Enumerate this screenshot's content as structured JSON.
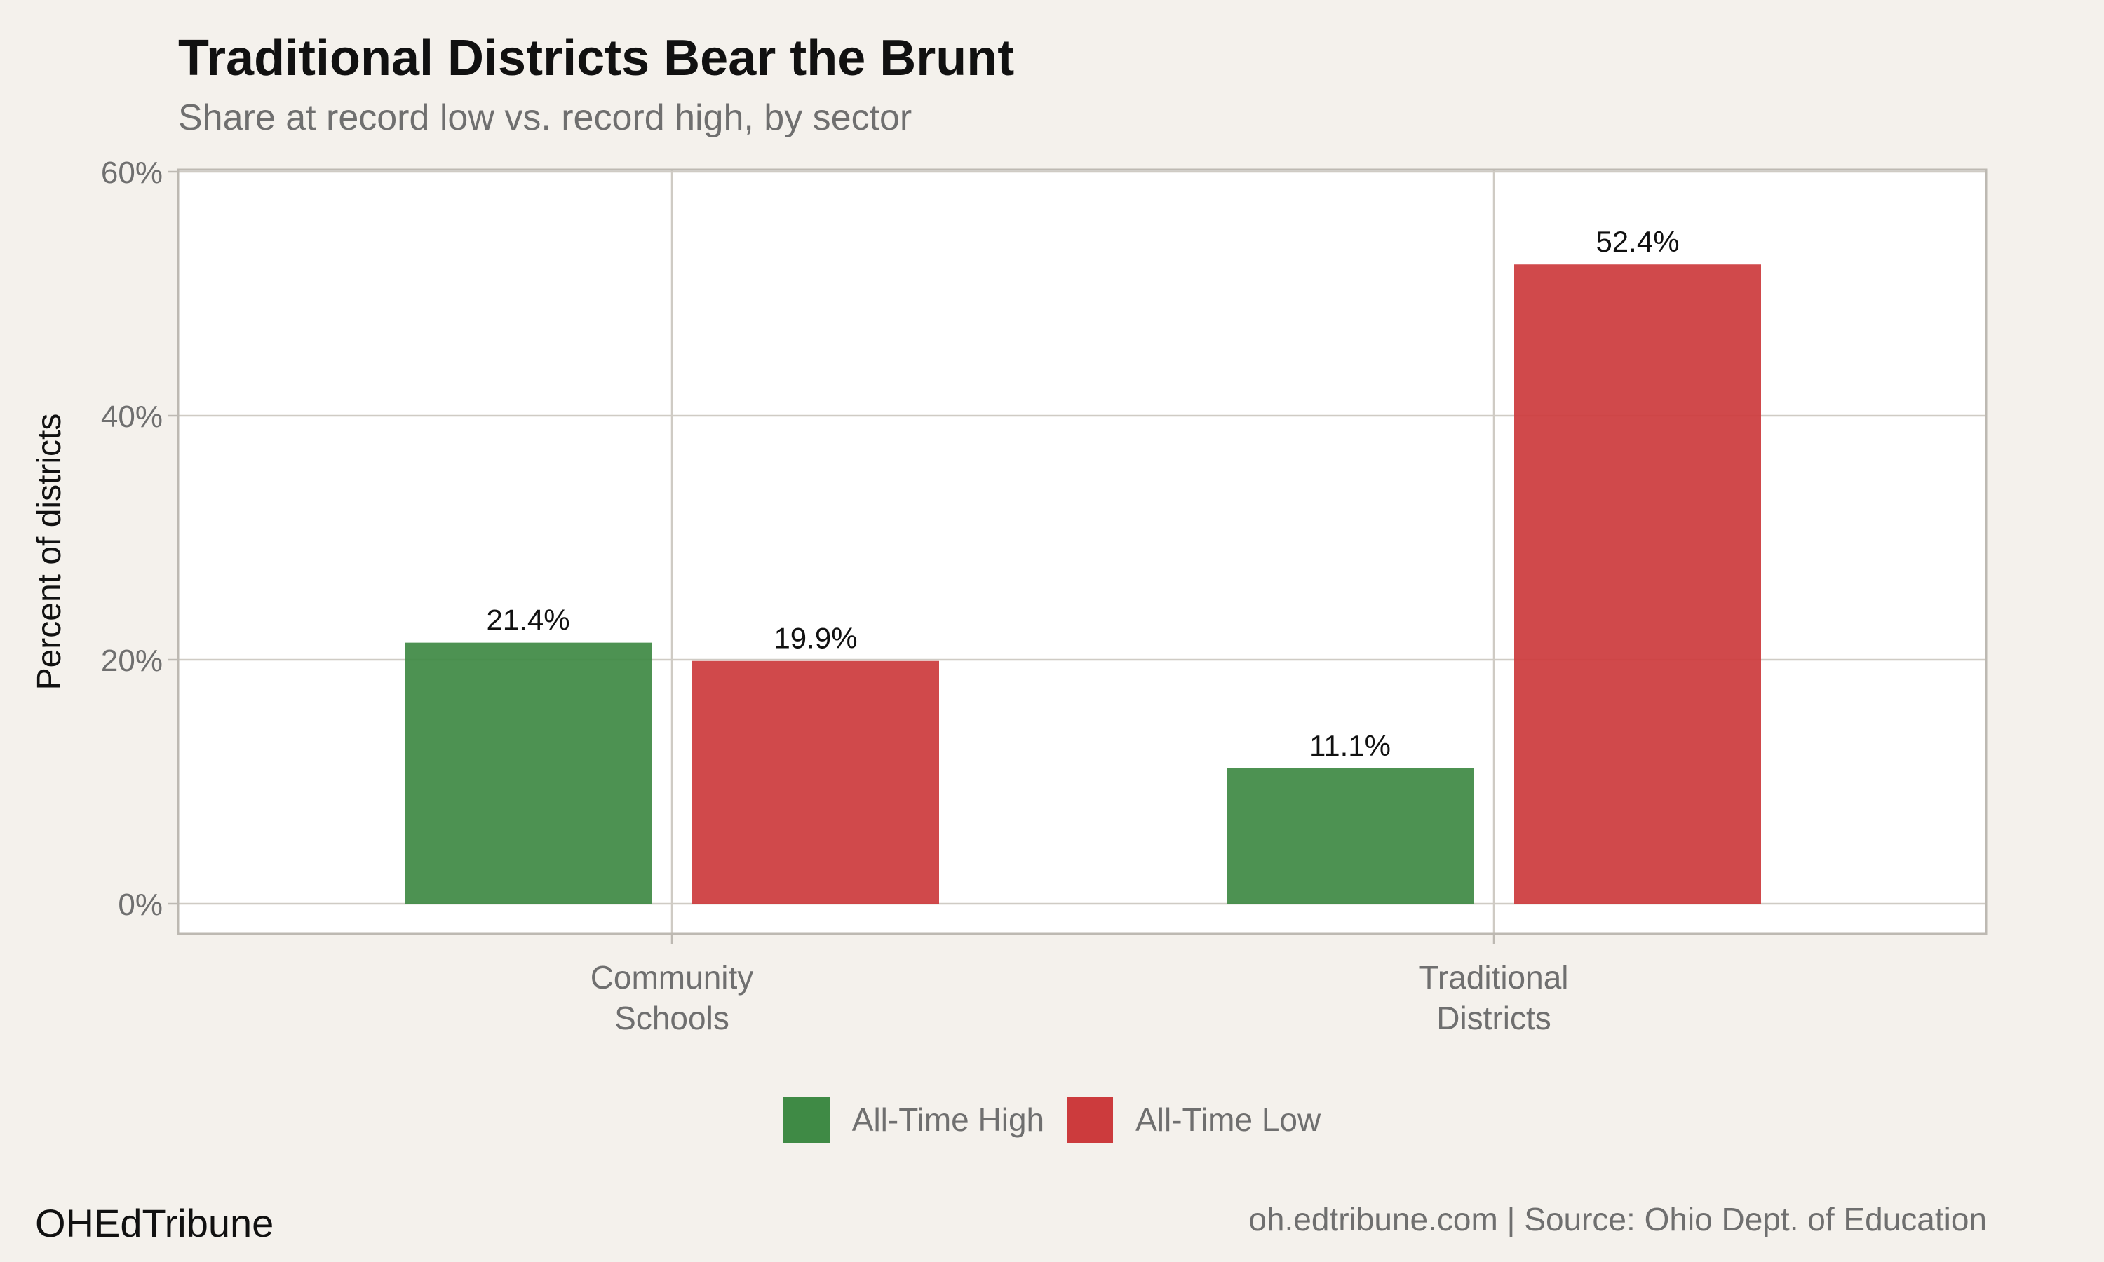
{
  "chart_data": {
    "type": "bar",
    "title": "Traditional Districts Bear the Brunt",
    "subtitle": "Share at record low vs. record high, by sector",
    "ylabel": "Percent of districts",
    "xlabel": "",
    "categories": [
      [
        "Community",
        "Schools"
      ],
      [
        "Traditional",
        "Districts"
      ]
    ],
    "series": [
      {
        "name": "All-Time High",
        "color": "#3f8a45",
        "values": [
          21.4,
          11.1
        ],
        "labels": [
          "21.4%",
          "11.1%"
        ]
      },
      {
        "name": "All-Time Low",
        "color": "#cc3b3d",
        "values": [
          19.9,
          52.4
        ],
        "labels": [
          "19.9%",
          "52.4%"
        ]
      }
    ],
    "ylim": [
      0,
      60
    ],
    "yticks": [
      0,
      20,
      40,
      60
    ],
    "ytick_labels": [
      "0%",
      "20%",
      "40%",
      "60%"
    ],
    "grid": true,
    "legend_position": "bottom"
  },
  "footer": {
    "brand": "OHEdTribune",
    "source": "oh.edtribune.com | Source: Ohio Dept. of Education"
  }
}
